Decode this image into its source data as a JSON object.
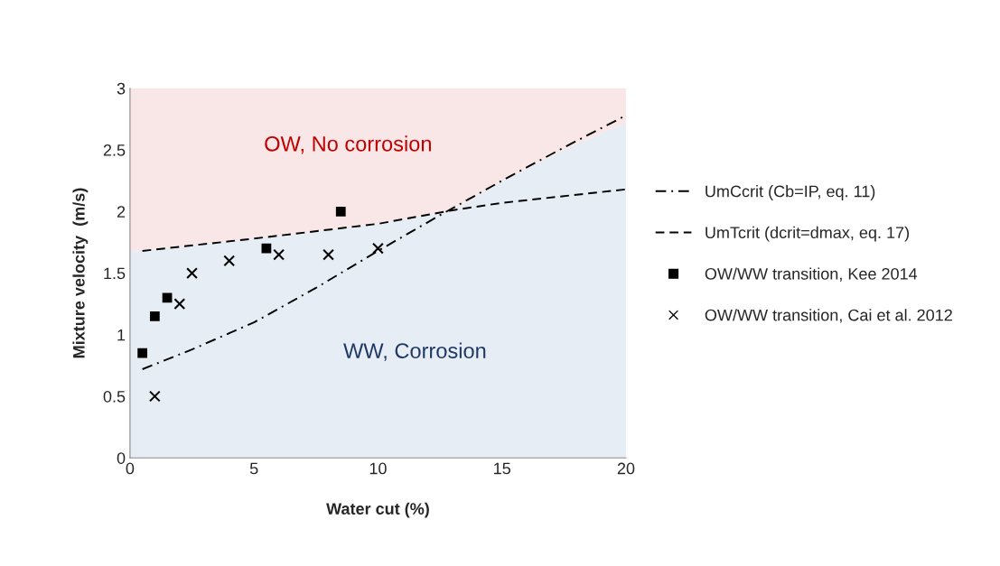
{
  "chart_data": {
    "type": "scatter",
    "xlabel": "Water cut (%)",
    "ylabel": "Mixture velocity  (m/s)",
    "xlim": [
      0,
      20
    ],
    "ylim": [
      0,
      3
    ],
    "xticks": [
      0,
      5,
      10,
      15,
      20
    ],
    "yticks": [
      0,
      0.5,
      1,
      1.5,
      2,
      2.5,
      3
    ],
    "series": [
      {
        "type": "area",
        "color": "#e6edf4",
        "x": [
          0,
          5,
          10,
          13,
          15,
          17.5,
          20
        ],
        "values": [
          1.67,
          1.78,
          1.9,
          2.01,
          2.25,
          2.5,
          2.72
        ]
      },
      {
        "type": "area",
        "color": "#f9e6e6",
        "x": [
          0,
          5,
          10,
          13,
          15,
          17.5,
          20
        ],
        "values": [
          1.33,
          1.22,
          1.1,
          0.99,
          0.75,
          0.5,
          0.28
        ]
      },
      {
        "type": "line",
        "name": "UmCcrit (Cb=IP, eq. 11)",
        "color": "#000000",
        "line_style": "dashdot",
        "x": [
          0.5,
          2.5,
          5,
          7.5,
          10,
          12.5,
          15,
          17.5,
          20
        ],
        "values": [
          0.72,
          0.88,
          1.1,
          1.38,
          1.68,
          1.97,
          2.25,
          2.52,
          2.78
        ]
      },
      {
        "type": "line",
        "name": "UmTcrit (dcrit=dmax, eq. 17)",
        "color": "#000000",
        "line_style": "dashed",
        "x": [
          0.5,
          5,
          10,
          13,
          15,
          20
        ],
        "values": [
          1.68,
          1.78,
          1.9,
          2.01,
          2.07,
          2.18
        ]
      },
      {
        "name": "OW/WW transition, Kee 2014",
        "color": "#000000",
        "marker": "square",
        "x": [
          0.5,
          1,
          1.5,
          5.5,
          8.5
        ],
        "values": [
          0.85,
          1.15,
          1.3,
          1.7,
          2.0
        ]
      },
      {
        "name": "OW/WW transition, Cai et al. 2012",
        "color": "#000000",
        "marker": "cross",
        "x": [
          1,
          2,
          2.5,
          4,
          6,
          8,
          10
        ],
        "values": [
          0.5,
          1.25,
          1.5,
          1.6,
          1.65,
          1.65,
          1.7
        ]
      }
    ],
    "annotations": [
      "OW, No corrosion",
      "WW, Corrosion"
    ],
    "legend": "right",
    "grid": false,
    "stacked": true
  }
}
